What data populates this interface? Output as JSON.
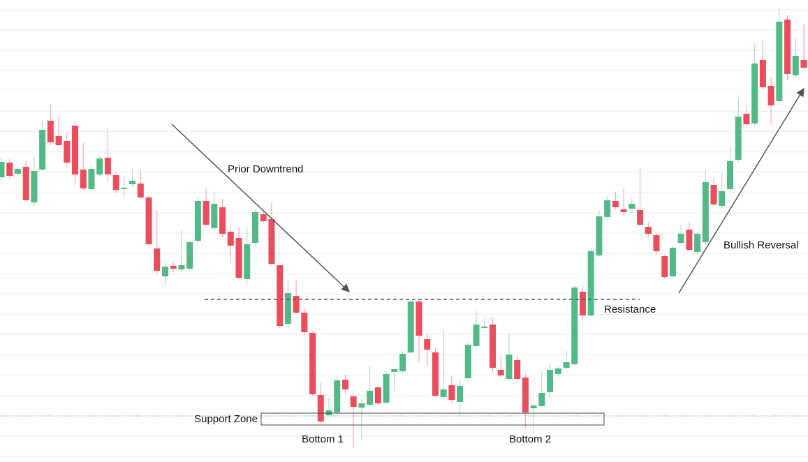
{
  "chart_data": {
    "type": "candlestick",
    "grid": true,
    "ylim": [
      0,
      662
    ],
    "up_color": "#53b987",
    "down_color": "#eb4d5c",
    "open": [
      408,
      429,
      413,
      423,
      372,
      419,
      489,
      467,
      460,
      482,
      419,
      391,
      412,
      436,
      411,
      391,
      398,
      399,
      379,
      306,
      266,
      281,
      276,
      277,
      317,
      374,
      335,
      365,
      330,
      321,
      262,
      314,
      355,
      348,
      282,
      198,
      238,
      214,
      185,
      96,
      67,
      71,
      118,
      94,
      78,
      82,
      107,
      85,
      129,
      130,
      157,
      230,
      176,
      157,
      93,
      110,
      86,
      120,
      166,
      192,
      197,
      132,
      119,
      146,
      121,
      77,
      80,
      100,
      126,
      135,
      140,
      244,
      210,
      296,
      351,
      374,
      362,
      363,
      361,
      337,
      325,
      295,
      266,
      314,
      333,
      301,
      315,
      397,
      367,
      391,
      433,
      499,
      485,
      576,
      539,
      517,
      634,
      554,
      576
    ],
    "high": [
      437,
      434,
      424,
      432,
      437,
      490,
      512,
      497,
      472,
      488,
      457,
      425,
      439,
      477,
      416,
      410,
      419,
      417,
      382,
      360,
      287,
      287,
      332,
      317,
      379,
      392,
      387,
      377,
      337,
      337,
      337,
      362,
      362,
      372,
      282,
      262,
      260,
      220,
      187,
      114,
      92,
      122,
      125,
      97,
      90,
      137,
      109,
      131,
      134,
      159,
      232,
      234,
      184,
      164,
      190,
      122,
      117,
      172,
      216,
      207,
      207,
      152,
      184,
      152,
      126,
      84,
      130,
      142,
      137,
      159,
      252,
      252,
      305,
      362,
      382,
      387,
      392,
      377,
      420,
      344,
      328,
      297,
      310,
      340,
      344,
      332,
      417,
      407,
      414,
      452,
      522,
      512,
      600,
      605,
      552,
      650,
      640,
      607,
      627
    ],
    "low": [
      404,
      406,
      410,
      372,
      365,
      417,
      454,
      452,
      422,
      397,
      389,
      389,
      410,
      402,
      386,
      377,
      394,
      377,
      310,
      270,
      252,
      272,
      272,
      274,
      314,
      337,
      332,
      322,
      287,
      262,
      255,
      310,
      342,
      282,
      192,
      192,
      212,
      182,
      95,
      56,
      64,
      69,
      97,
      20,
      32,
      79,
      82,
      83,
      102,
      128,
      155,
      144,
      138,
      93,
      90,
      84,
      64,
      116,
      164,
      191,
      129,
      122,
      116,
      115,
      48,
      40,
      77,
      92,
      122,
      132,
      138,
      202,
      208,
      294,
      348,
      362,
      352,
      357,
      338,
      322,
      297,
      263,
      264,
      310,
      302,
      297,
      312,
      367,
      364,
      389,
      430,
      482,
      482,
      535,
      484,
      512,
      547,
      550,
      563
    ],
    "close": [
      430,
      410,
      420,
      375,
      417,
      476,
      458,
      454,
      429,
      412,
      392,
      420,
      435,
      412,
      390,
      393,
      403,
      379,
      312,
      274,
      280,
      277,
      282,
      315,
      374,
      340,
      370,
      327,
      310,
      264,
      312,
      358,
      345,
      284,
      195,
      242,
      214,
      186,
      97,
      58,
      74,
      117,
      104,
      79,
      84,
      102,
      84,
      126,
      133,
      155,
      230,
      181,
      161,
      95,
      104,
      89,
      109,
      168,
      197,
      194,
      135,
      124,
      154,
      119,
      71,
      81,
      99,
      132,
      134,
      143,
      250,
      210,
      302,
      352,
      375,
      365,
      358,
      370,
      340,
      327,
      302,
      265,
      307,
      327,
      304,
      327,
      401,
      369,
      388,
      431,
      495,
      484,
      571,
      537,
      511,
      631,
      556,
      582,
      565
    ],
    "resistance_level": 233,
    "support_line": 66,
    "support_zone": [
      53,
      70
    ],
    "annotations": [
      {
        "text": "Prior Downtrend"
      },
      {
        "text": "Bullish Reversal"
      },
      {
        "text": "Resistance"
      },
      {
        "text": "Support Zone"
      },
      {
        "text": "Bottom 1"
      },
      {
        "text": "Bottom 2"
      }
    ]
  }
}
